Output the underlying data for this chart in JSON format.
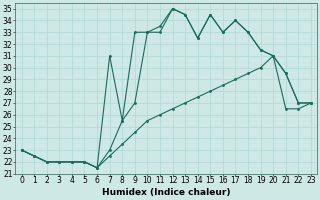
{
  "bg_color": "#cde8e5",
  "grid_color": "#b0d8d4",
  "line_color": "#1a6b5a",
  "xlim": [
    -0.5,
    23.5
  ],
  "ylim": [
    21,
    35.5
  ],
  "yticks": [
    21,
    22,
    23,
    24,
    25,
    26,
    27,
    28,
    29,
    30,
    31,
    32,
    33,
    34,
    35
  ],
  "xticks": [
    0,
    1,
    2,
    3,
    4,
    5,
    6,
    7,
    8,
    9,
    10,
    11,
    12,
    13,
    14,
    15,
    16,
    17,
    18,
    19,
    20,
    21,
    22,
    23
  ],
  "xlabel": "Humidex (Indice chaleur)",
  "line1_x": [
    0,
    1,
    2,
    3,
    4,
    5,
    6,
    7,
    8,
    9,
    10,
    11,
    12,
    13,
    14,
    15,
    16,
    17,
    18,
    19,
    20,
    21,
    22,
    23
  ],
  "line1_y": [
    23.0,
    22.5,
    22.0,
    22.0,
    22.0,
    22.0,
    21.5,
    22.5,
    23.5,
    24.5,
    25.5,
    26.0,
    26.5,
    27.0,
    27.5,
    28.0,
    28.5,
    29.0,
    29.5,
    30.0,
    31.0,
    26.5,
    26.5,
    27.0
  ],
  "line2_x": [
    0,
    1,
    2,
    3,
    4,
    5,
    6,
    7,
    8,
    9,
    10,
    11,
    12,
    13,
    14,
    15,
    16,
    17,
    18,
    19,
    20,
    21,
    22,
    23
  ],
  "line2_y": [
    23.0,
    22.5,
    22.0,
    22.0,
    22.0,
    22.0,
    21.5,
    23.0,
    25.5,
    27.0,
    33.0,
    33.0,
    35.0,
    34.5,
    32.5,
    34.5,
    33.0,
    34.0,
    33.0,
    31.5,
    31.0,
    29.5,
    27.0,
    27.0
  ],
  "line3_x": [
    0,
    1,
    2,
    3,
    4,
    5,
    6,
    7,
    8,
    9,
    10,
    11,
    12,
    13,
    14,
    15,
    16,
    17,
    18,
    19,
    20,
    21,
    22,
    23
  ],
  "line3_y": [
    23.0,
    22.5,
    22.0,
    22.0,
    22.0,
    22.0,
    21.5,
    31.0,
    25.5,
    33.0,
    33.0,
    33.5,
    35.0,
    34.5,
    32.5,
    34.5,
    33.0,
    34.0,
    33.0,
    31.5,
    31.0,
    29.5,
    27.0,
    27.0
  ],
  "tick_fontsize": 5.5,
  "xlabel_fontsize": 6.5
}
